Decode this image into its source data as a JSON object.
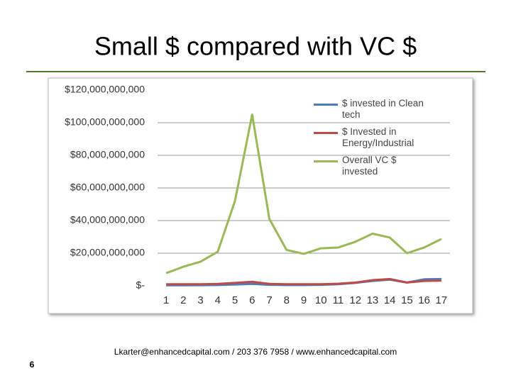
{
  "slide": {
    "title": "Small $ compared with VC $",
    "footer": "Lkarter@enhancedcapital.com  / 203 376 7958  / www.enhancedcapital.com",
    "page_number": "6"
  },
  "chart_data": {
    "type": "line",
    "categories": [
      "1",
      "2",
      "3",
      "4",
      "5",
      "6",
      "7",
      "8",
      "9",
      "10",
      "11",
      "12",
      "13",
      "14",
      "15",
      "16",
      "17"
    ],
    "series": [
      {
        "name": "$ invested in Clean tech",
        "color": "#4a7ebb",
        "values": [
          300000000,
          300000000,
          400000000,
          500000000,
          800000000,
          1200000000,
          600000000,
          500000000,
          500000000,
          600000000,
          1000000000,
          1800000000,
          3000000000,
          3800000000,
          2000000000,
          4000000000,
          4200000000
        ]
      },
      {
        "name": "$ Invested in Energy/Industrial",
        "color": "#be4b48",
        "values": [
          1000000000,
          1000000000,
          1000000000,
          1200000000,
          1800000000,
          2500000000,
          1200000000,
          1000000000,
          1000000000,
          1000000000,
          1300000000,
          2000000000,
          3500000000,
          4200000000,
          2000000000,
          3000000000,
          3200000000
        ]
      },
      {
        "name": "Overall VC $ invested",
        "color": "#98b954",
        "values": [
          7800000000,
          11700000000,
          14800000000,
          20900000000,
          52000000000,
          105000000000,
          41000000000,
          22000000000,
          19600000000,
          23000000000,
          23500000000,
          27000000000,
          32000000000,
          29600000000,
          20000000000,
          23500000000,
          28700000000
        ]
      }
    ],
    "ylim": [
      0,
      120000000000
    ],
    "yticks": [
      {
        "value": 0,
        "label": "$-"
      },
      {
        "value": 20000000000,
        "label": "$20,000,000,000"
      },
      {
        "value": 40000000000,
        "label": "$40,000,000,000"
      },
      {
        "value": 60000000000,
        "label": "$60,000,000,000"
      },
      {
        "value": 80000000000,
        "label": "$80,000,000,000"
      },
      {
        "value": 100000000000,
        "label": "$100,000,000,000"
      },
      {
        "value": 120000000000,
        "label": "$120,000,000,000"
      }
    ],
    "grid": true
  }
}
